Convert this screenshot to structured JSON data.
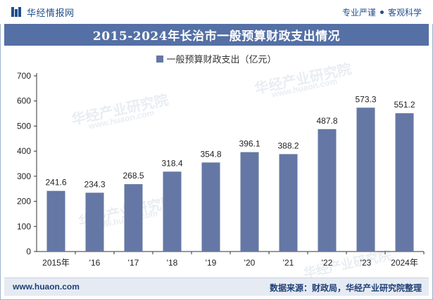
{
  "header": {
    "brand_name": "华经情报网",
    "badge_1": "专业严谨",
    "badge_2": "客观科学"
  },
  "chart_data": {
    "type": "bar",
    "title": "2015-2024年长治市一般预算财政支出情况",
    "categories": [
      "2015年",
      "'16",
      "'17",
      "'18",
      "'19",
      "'20",
      "'21",
      "'22",
      "'23",
      "2024年"
    ],
    "series": [
      {
        "name": "一般预算财政支出（亿元）",
        "values": [
          241.6,
          234.3,
          268.5,
          318.4,
          354.8,
          396.1,
          388.2,
          487.8,
          573.3,
          551.2
        ]
      }
    ],
    "value_labels": [
      "241.6",
      "234.3",
      "268.5",
      "318.4",
      "354.8",
      "396.1",
      "388.2",
      "487.8",
      "573.3",
      "551.2"
    ],
    "yticks": [
      "0",
      "100",
      "200",
      "300",
      "400",
      "500",
      "600",
      "700"
    ],
    "ylim": [
      0,
      700
    ],
    "bar_color": "#6577a4",
    "grid": false,
    "legend_position": "top-center"
  },
  "watermark": {
    "text": "华经产业研究院",
    "url": "www.huaon.com"
  },
  "footer": {
    "url": "www.huaon.com",
    "source": "数据来源：财政局，华经产业研究院整理"
  },
  "colors": {
    "title_bar": "#5470a5",
    "brand": "#1f4e8c",
    "footer_bg": "#e6ebf3"
  }
}
